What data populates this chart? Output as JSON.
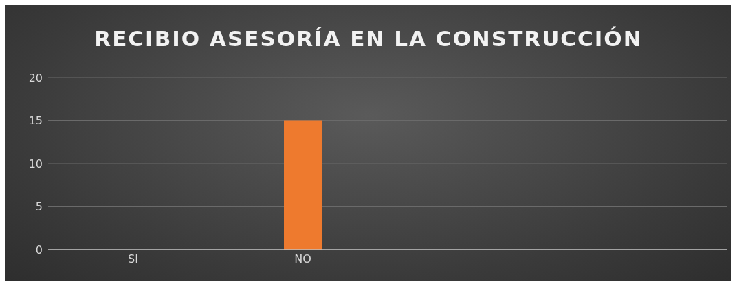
{
  "chart_data": {
    "type": "bar",
    "title": "RECIBIO ASESORÍA EN LA CONSTRUCCIÓN",
    "categories": [
      "SI",
      "NO",
      null,
      null
    ],
    "values": [
      0,
      15,
      null,
      null
    ],
    "color": "#ee7a2e",
    "ylim": [
      0,
      20
    ],
    "yticks": [
      0,
      5,
      10,
      15,
      20
    ],
    "grid": "y",
    "legend": false
  }
}
